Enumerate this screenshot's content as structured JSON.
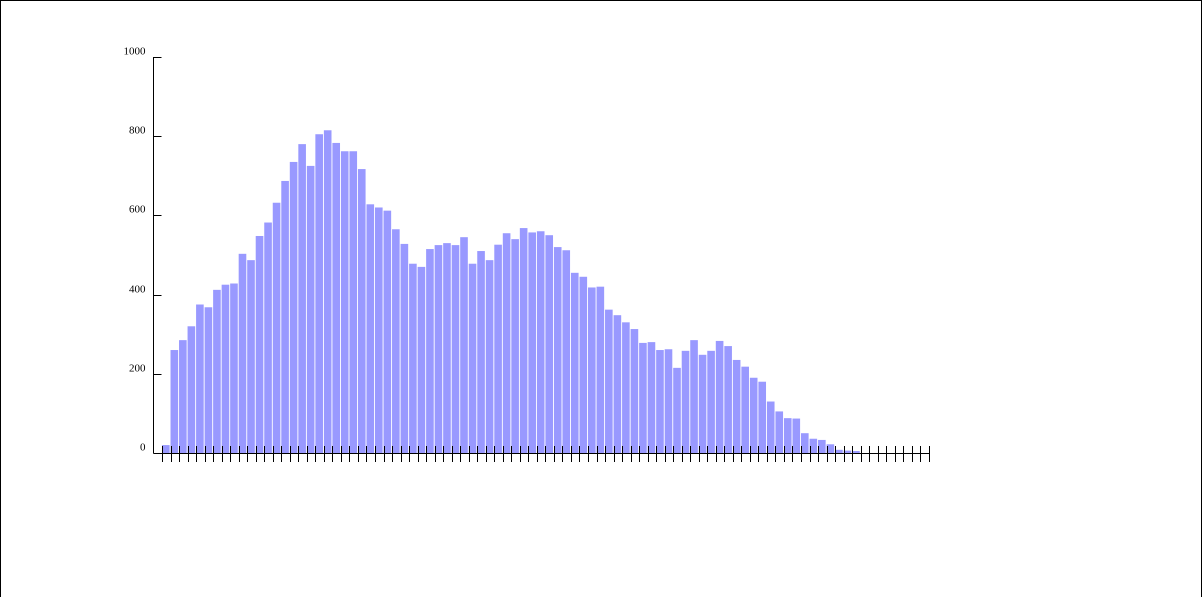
{
  "chart_data": {
    "type": "bar",
    "title": "",
    "xlabel": "",
    "ylabel": "",
    "ylim": [
      0,
      1000
    ],
    "y_ticks": [
      "0",
      "200",
      "400",
      "600",
      "800",
      "1000"
    ],
    "bar_color": "#9999ff",
    "values": [
      20,
      260,
      285,
      320,
      375,
      368,
      412,
      425,
      428,
      503,
      487,
      548,
      582,
      632,
      687,
      735,
      780,
      725,
      805,
      815,
      783,
      762,
      762,
      717,
      628,
      620,
      612,
      565,
      528,
      478,
      470,
      515,
      525,
      530,
      525,
      545,
      478,
      510,
      487,
      526,
      555,
      540,
      568,
      557,
      560,
      550,
      520,
      512,
      455,
      445,
      418,
      420,
      362,
      348,
      330,
      313,
      278,
      280,
      260,
      262,
      215,
      258,
      285,
      248,
      258,
      283,
      270,
      235,
      218,
      190,
      180,
      130,
      105,
      88,
      87,
      50,
      36,
      33,
      22,
      8,
      6,
      5,
      0,
      0,
      0,
      0,
      0,
      0,
      0,
      0
    ]
  }
}
